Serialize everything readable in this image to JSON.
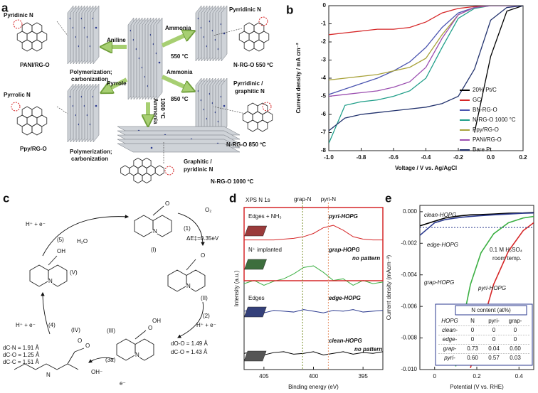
{
  "figure": {
    "panel_a": {
      "label": "a",
      "texts": [
        "Pyridinic N",
        "PANI/RG-O",
        "Aniline",
        "Ammonia",
        "550 °C",
        "Pyrridinic N",
        "N-RG-O 550 ºC",
        "Polymerization;",
        "carbonization",
        "Pyrrole",
        "Ammonia",
        "850 °C",
        "Ammonia",
        "1000 °C",
        "Pyrrolic N",
        "Ppy/RG-O",
        "Pyrridinic /",
        "graphitic N",
        "N-RG-O 850 ºC",
        "Polymerization;",
        "carbonization",
        "Graphitic /",
        "pyridinic N",
        "N-RG-O 1000 ºC"
      ]
    },
    "panel_c": {
      "label": "c",
      "texts": [
        "(I)",
        "(II)",
        "(III)",
        "(IV)",
        "(V)",
        "O₂",
        "(1)",
        "ΔE‡=0.35eV",
        "(2)",
        "H⁺ + e⁻",
        "(3a)",
        "OH⁻",
        "e⁻",
        "(4)",
        "H⁺ + e⁻",
        "(5)",
        "H⁺ + e⁻",
        "H₂O",
        "dC-N = 1.91 Å",
        "dC-O = 1.25 Å",
        "dC-C = 1.51 Å",
        "dO-O = 1.49 Å",
        "dC-O = 1.43 Å"
      ],
      "atoms": [
        "N",
        "N",
        "N",
        "N",
        "N",
        "O",
        "O",
        "O",
        "OH",
        "OH",
        "O",
        "O"
      ]
    }
  },
  "chart_data": [
    {
      "label": "b",
      "type": "line",
      "x_label": "Voltage / V vs. Ag/AgCl",
      "y_label": "Current density / mA cm⁻²",
      "x": [
        -1.0,
        -0.9,
        -0.8,
        -0.7,
        -0.6,
        -0.5,
        -0.4,
        -0.3,
        -0.2,
        -0.1,
        0.0,
        0.1,
        0.2
      ],
      "xlim": [
        -1.0,
        0.2
      ],
      "xticks": [
        {
          "value": -1,
          "label": "-1.0"
        },
        -0.8,
        -0.6,
        -0.4,
        -0.2,
        {
          "value": 0,
          "label": "0.0"
        },
        0.2
      ],
      "ylim": [
        -8,
        0
      ],
      "yticks": [
        0,
        -1,
        -2,
        -3,
        -4,
        -5,
        -6,
        -7,
        -8
      ],
      "legend": "lower right",
      "series": [
        {
          "name": "20% Pt/C",
          "color": "#000000",
          "values": [
            null,
            null,
            null,
            null,
            null,
            null,
            null,
            null,
            null,
            -7.0,
            -2.8,
            -0.3,
            0
          ]
        },
        {
          "name": "GC",
          "color": "#d62728",
          "values": [
            -1.6,
            -1.5,
            -1.4,
            -1.3,
            -1.3,
            -1.2,
            -0.9,
            -0.4,
            -0.15,
            -0.05,
            0,
            0,
            0
          ]
        },
        {
          "name": "BN-RG-O",
          "color": "#4b55b0",
          "values": [
            -4.9,
            -4.6,
            -4.3,
            -4.0,
            -3.6,
            -3.1,
            -2.3,
            -1.2,
            -0.4,
            -0.1,
            0,
            0,
            0
          ]
        },
        {
          "name": "N-RG-O 1000 °C",
          "color": "#1f9e89",
          "values": [
            -7.6,
            -5.5,
            -5.3,
            -5.2,
            -5.0,
            -4.7,
            -4.0,
            -2.3,
            -0.7,
            -0.15,
            0,
            0,
            0
          ]
        },
        {
          "name": "Ppy/RG-O",
          "color": "#a8a23a",
          "values": [
            -4.1,
            -4.0,
            -3.9,
            -3.8,
            -3.6,
            -3.4,
            -2.9,
            -1.6,
            -0.5,
            -0.1,
            0,
            0,
            0
          ]
        },
        {
          "name": "PANi/RG-O",
          "color": "#9b4fb0",
          "values": [
            -5.0,
            -4.9,
            -4.8,
            -4.7,
            -4.5,
            -4.2,
            -3.4,
            -1.8,
            -0.5,
            -0.1,
            0,
            0,
            0
          ]
        },
        {
          "name": "Bare Pt",
          "color": "#23336e",
          "values": [
            -6.9,
            -6.2,
            -6.0,
            -5.9,
            -5.8,
            -5.7,
            -5.6,
            -5.4,
            -5.0,
            -3.5,
            -0.8,
            -0.1,
            0
          ]
        }
      ]
    },
    {
      "label": "d",
      "type": "line",
      "title": "XPS N 1s",
      "x_label": "Binding energy (eV)",
      "y_label": "Intensity (a.u.)",
      "x": [
        407,
        406,
        405,
        404,
        403,
        402,
        401,
        400,
        399,
        398,
        397,
        396,
        395,
        394,
        393
      ],
      "xlim": [
        407,
        393
      ],
      "xticks": [
        405,
        400,
        395
      ],
      "ylim": [
        0,
        10
      ],
      "reference_lines": [
        {
          "label": "grap-N",
          "value": 401.1,
          "color": "#7a8f2a"
        },
        {
          "label": "pyri-N",
          "value": 398.5,
          "color": "#e8956b"
        }
      ],
      "annotations": [
        "Edges + NH₃",
        "N⁺ implanted",
        "no pattern",
        "Edges",
        "no pattern"
      ],
      "series": [
        {
          "name": "pyri-HOPG",
          "color": "#d62728",
          "values": [
            8.0,
            8.0,
            8.0,
            8.0,
            8.05,
            8.1,
            8.2,
            8.4,
            8.75,
            8.9,
            8.6,
            8.2,
            8.05,
            8.0,
            8.0
          ]
        },
        {
          "name": "grap-HOPG",
          "color": "#3cb043",
          "values": [
            5.3,
            5.5,
            5.2,
            5.45,
            5.6,
            5.9,
            6.3,
            6.4,
            6.0,
            5.5,
            5.6,
            5.2,
            5.5,
            5.3,
            5.4
          ]
        },
        {
          "name": "edge-HOPG",
          "color": "#2b3a8f",
          "values": [
            3.6,
            3.7,
            3.5,
            3.65,
            3.6,
            3.55,
            3.7,
            3.6,
            3.5,
            3.65,
            3.6,
            3.7,
            3.55,
            3.6,
            3.65
          ]
        },
        {
          "name": "clean-HOPG",
          "color": "#000000",
          "values": [
            1.0,
            1.1,
            0.9,
            1.05,
            1.1,
            0.95,
            1.0,
            1.1,
            0.9,
            1.0,
            1.1,
            0.95,
            1.05,
            1.0,
            1.1
          ]
        }
      ]
    },
    {
      "label": "e",
      "type": "line",
      "x_label": "Potential (V vs. RHE)",
      "y_label": "Current density (mAcm⁻²)",
      "x": [
        -0.07,
        0,
        0.05,
        0.1,
        0.13,
        0.17,
        0.22,
        0.28,
        0.35,
        0.42,
        0.47
      ],
      "xlim": [
        -0.07,
        0.47
      ],
      "xticks": [
        0,
        0.2,
        0.4
      ],
      "ylim": [
        -0.01,
        0.0004
      ],
      "yticks": [
        {
          "value": 0,
          "label": "0.000"
        },
        -0.002,
        -0.004,
        -0.006,
        -0.008,
        {
          "value": -0.01,
          "label": "-0.010"
        }
      ],
      "reference_line": -0.001,
      "annotations": [
        "0.1 M H₂SO₄",
        "room temp."
      ],
      "series": [
        {
          "name": "clean-HOPG",
          "color": "#000000",
          "values": [
            -0.0009,
            -0.0006,
            -0.0004,
            -0.0003,
            -0.00025,
            -0.0002,
            -0.00018,
            -0.00015,
            -0.0001,
            -8e-05,
            -5e-05
          ]
        },
        {
          "name": "edge-HOPG",
          "color": "#2b3a8f",
          "values": [
            -0.0015,
            -0.0007,
            -0.0005,
            -0.0004,
            -0.00035,
            -0.0003,
            -0.00025,
            -0.0002,
            -0.00015,
            -0.0001,
            -8e-05
          ]
        },
        {
          "name": "grap-HOPG",
          "color": "#3cb043",
          "values": [
            null,
            null,
            null,
            -0.0098,
            -0.0072,
            -0.0046,
            -0.0026,
            -0.0014,
            -0.0007,
            -0.0004,
            -0.0003
          ]
        },
        {
          "name": "pyri-HOPG",
          "color": "#d62728",
          "values": [
            null,
            null,
            null,
            null,
            null,
            -0.0099,
            -0.0074,
            -0.0046,
            -0.0025,
            -0.0012,
            -0.0007
          ]
        }
      ],
      "table": {
        "title": "N content (at%)",
        "columns": [
          "HOPG",
          "N",
          "pyri-",
          "grap-"
        ],
        "rows": [
          [
            "clean-",
            "0",
            "0",
            "0"
          ],
          [
            "edge-",
            "0",
            "0",
            "0"
          ],
          [
            "grap-",
            "0.73",
            "0.04",
            "0.60"
          ],
          [
            "pyri-",
            "0.60",
            "0.57",
            "0.03"
          ]
        ]
      }
    }
  ]
}
